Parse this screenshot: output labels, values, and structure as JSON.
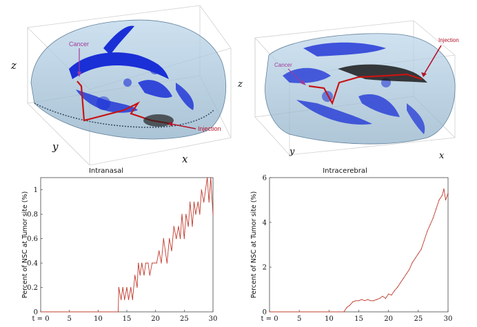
{
  "figure": {
    "top_left": {
      "cancer_label": "Cancer",
      "injection_label": "Injection",
      "axis_x": "x",
      "axis_y": "y",
      "axis_z": "z",
      "annotation_color": "#a33a9a",
      "injection_color": "#b3122a"
    },
    "top_right": {
      "cancer_label": "Cancer",
      "injection_label": "Injection",
      "axis_x": "x",
      "axis_y": "y",
      "axis_z": "z",
      "annotation_color": "#a33a9a",
      "injection_color": "#b3122a"
    },
    "colors": {
      "line": "#c0392b",
      "brain_fill": "#a9c6dc",
      "cell_blue": "#1a2fd6",
      "path_red": "#c81414"
    }
  },
  "chart_data": [
    {
      "type": "line",
      "title": "Intranasal",
      "xlabel": "",
      "ylabel": "Percent of NSC at Tumor site (%)",
      "xlim": [
        0,
        30
      ],
      "ylim": [
        0,
        1.1
      ],
      "xticks": [
        "t = 0",
        "5",
        "10",
        "15",
        "20",
        "25",
        "30"
      ],
      "yticks": [
        "0",
        "0.2",
        "0.4",
        "0.6",
        "0.8",
        "1"
      ],
      "series": [
        {
          "name": "Intranasal",
          "x": [
            0,
            13.5,
            13.6,
            14.0,
            14.3,
            14.6,
            15.0,
            15.3,
            15.7,
            16.0,
            16.4,
            16.8,
            17.0,
            17.3,
            17.6,
            18.0,
            18.3,
            18.7,
            19.0,
            19.4,
            19.8,
            20.2,
            20.6,
            21.0,
            21.4,
            21.7,
            22.0,
            22.4,
            22.8,
            23.2,
            23.6,
            24.0,
            24.3,
            24.6,
            25.0,
            25.3,
            25.7,
            26.0,
            26.4,
            26.7,
            27.0,
            27.4,
            27.7,
            28.0,
            28.4,
            28.7,
            29.0,
            29.3,
            29.6,
            30.0
          ],
          "y": [
            0,
            0,
            0.2,
            0.1,
            0.2,
            0.1,
            0.2,
            0.1,
            0.2,
            0.1,
            0.3,
            0.2,
            0.4,
            0.3,
            0.4,
            0.3,
            0.4,
            0.4,
            0.3,
            0.4,
            0.4,
            0.4,
            0.5,
            0.4,
            0.6,
            0.5,
            0.4,
            0.6,
            0.5,
            0.7,
            0.6,
            0.7,
            0.6,
            0.8,
            0.6,
            0.8,
            0.7,
            0.9,
            0.7,
            0.9,
            0.8,
            0.9,
            0.8,
            1.0,
            0.9,
            1.0,
            1.1,
            0.9,
            1.1,
            0.8
          ]
        }
      ]
    },
    {
      "type": "line",
      "title": "Intracerebral",
      "xlabel": "",
      "ylabel": "Percent of NSC at Tumor site (%)",
      "xlim": [
        0,
        30
      ],
      "ylim": [
        0,
        6
      ],
      "xticks": [
        "t = 0",
        "5",
        "10",
        "15",
        "20",
        "25",
        "30"
      ],
      "yticks": [
        "0",
        "2",
        "4",
        "6"
      ],
      "series": [
        {
          "name": "Intracerebral",
          "x": [
            0,
            12.5,
            13.0,
            13.5,
            14.0,
            14.5,
            15.0,
            15.5,
            16.0,
            16.5,
            17.0,
            17.5,
            18.0,
            18.5,
            19.0,
            19.5,
            20.0,
            20.5,
            21.0,
            21.5,
            22.0,
            22.5,
            23.0,
            23.5,
            24.0,
            24.5,
            25.0,
            25.5,
            26.0,
            26.5,
            27.0,
            27.5,
            28.0,
            28.5,
            29.0,
            29.3,
            29.6,
            30.0
          ],
          "y": [
            0,
            0,
            0.2,
            0.3,
            0.45,
            0.5,
            0.5,
            0.55,
            0.5,
            0.55,
            0.5,
            0.5,
            0.55,
            0.6,
            0.7,
            0.6,
            0.8,
            0.75,
            0.95,
            1.1,
            1.3,
            1.5,
            1.7,
            1.9,
            2.2,
            2.4,
            2.6,
            2.8,
            3.2,
            3.6,
            3.9,
            4.2,
            4.6,
            5.0,
            5.2,
            5.5,
            5.0,
            5.3
          ]
        }
      ]
    }
  ]
}
